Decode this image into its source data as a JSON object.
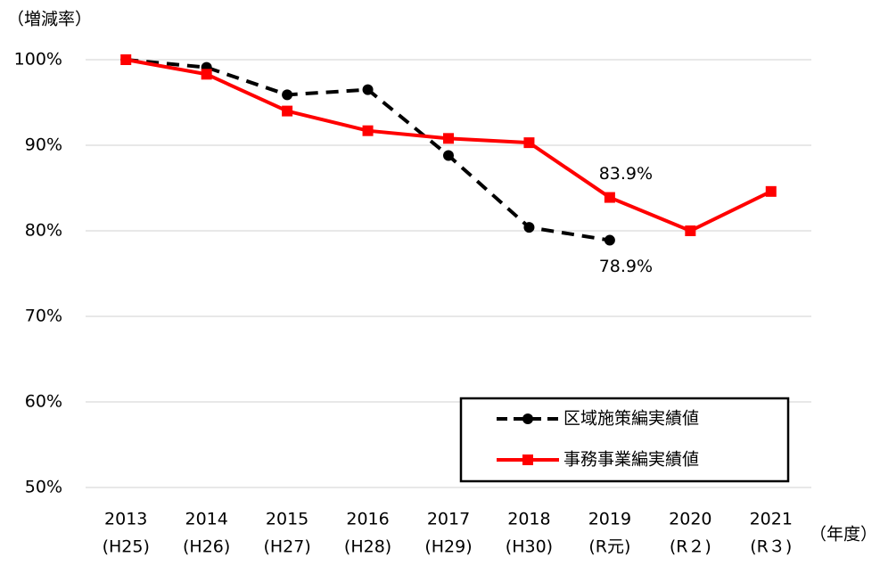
{
  "chart_data": {
    "type": "line",
    "y_label": "（増減率）",
    "x_label": "（年度）",
    "categories": [
      "2013",
      "2014",
      "2015",
      "2016",
      "2017",
      "2018",
      "2019",
      "2020",
      "2021"
    ],
    "category_sublabels": [
      "(H25)",
      "(H26)",
      "(H27)",
      "(H28)",
      "(H29)",
      "(H30)",
      "(R元)",
      "(R２)",
      "(R３)"
    ],
    "series": [
      {
        "name": "区域施策編実績値",
        "color": "#000000",
        "dash": true,
        "marker": "circle",
        "values": [
          100,
          99.1,
          95.9,
          96.5,
          88.8,
          80.4,
          78.9,
          null,
          null
        ],
        "value_labels": [
          null,
          null,
          null,
          null,
          null,
          null,
          "78.9%",
          null,
          null
        ]
      },
      {
        "name": "事務事業編実績値",
        "color": "#ff0000",
        "dash": false,
        "marker": "square",
        "values": [
          100,
          98.3,
          94.0,
          91.7,
          90.8,
          90.3,
          83.9,
          80.0,
          84.6
        ],
        "value_labels": [
          null,
          null,
          null,
          null,
          null,
          null,
          "83.9%",
          null,
          null
        ]
      }
    ],
    "ylim": [
      50,
      100
    ],
    "yticks": [
      {
        "value": 50,
        "label": "50%"
      },
      {
        "value": 60,
        "label": "60%"
      },
      {
        "value": 70,
        "label": "70%"
      },
      {
        "value": 80,
        "label": "80%"
      },
      {
        "value": 90,
        "label": "90%"
      },
      {
        "value": 100,
        "label": "100%"
      }
    ],
    "grid": true
  }
}
